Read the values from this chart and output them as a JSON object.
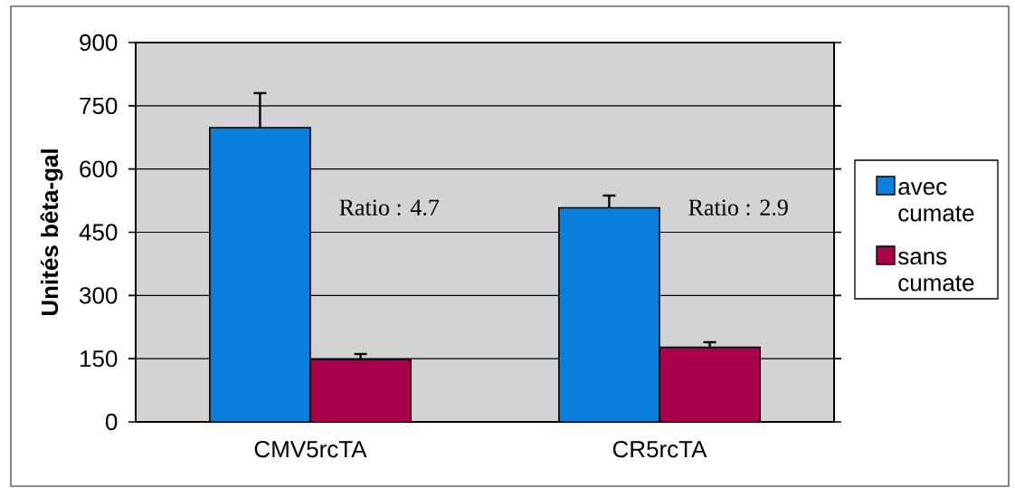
{
  "chart_data": {
    "type": "bar",
    "ylabel": "Unités bêta-gal",
    "categories": [
      "CMV5rcTA",
      "CR5rcTA"
    ],
    "series": [
      {
        "name": "avec cumate",
        "color": "#0a80dc",
        "values": [
          698,
          508
        ],
        "errors": [
          [
            698,
            780
          ],
          [
            508,
            537
          ]
        ]
      },
      {
        "name": "sans cumate",
        "color": "#a8004a",
        "values": [
          148,
          177
        ],
        "errors": [
          [
            148,
            161
          ],
          [
            177,
            189
          ]
        ]
      }
    ],
    "ylim": [
      0,
      900
    ],
    "yticks": [
      0,
      150,
      300,
      450,
      600,
      750,
      900
    ],
    "grid": "y",
    "legend": "right",
    "annotations": [
      "Ratio : 4.7",
      "Ratio : 2.9"
    ]
  }
}
